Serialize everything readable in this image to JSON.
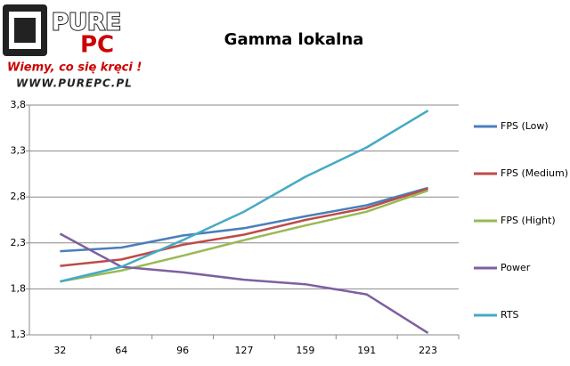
{
  "logo": {
    "top": "PURE",
    "bottom": "PC",
    "slogan": "Wiemy, co się kręci !",
    "url": "WWW.PUREPC.PL"
  },
  "chart_data": {
    "type": "line",
    "title": "Gamma lokalna",
    "categories": [
      "32",
      "64",
      "96",
      "127",
      "159",
      "191",
      "223"
    ],
    "series": [
      {
        "name": "FPS (Low)",
        "color": "#4a7ebb",
        "values": [
          2.21,
          2.25,
          2.38,
          2.46,
          2.59,
          2.71,
          2.9
        ]
      },
      {
        "name": "FPS (Medium)",
        "color": "#be4b48",
        "values": [
          2.05,
          2.12,
          2.28,
          2.39,
          2.55,
          2.68,
          2.89
        ]
      },
      {
        "name": "FPS (Hight)",
        "color": "#98b954",
        "values": [
          1.88,
          2.0,
          2.16,
          2.33,
          2.49,
          2.64,
          2.87
        ]
      },
      {
        "name": "Power",
        "color": "#7d60a0",
        "values": [
          2.4,
          2.04,
          1.98,
          1.9,
          1.85,
          1.74,
          1.32
        ]
      },
      {
        "name": "RTS",
        "color": "#46aac5",
        "values": [
          1.88,
          2.04,
          2.33,
          2.64,
          3.02,
          3.34,
          3.74
        ]
      }
    ],
    "ylim": [
      1.3,
      3.8
    ],
    "yticks": [
      {
        "value": 1.3,
        "label": "1,3"
      },
      {
        "value": 1.8,
        "label": "1,8"
      },
      {
        "value": 2.3,
        "label": "2,3"
      },
      {
        "value": 2.8,
        "label": "2,8"
      },
      {
        "value": 3.3,
        "label": "3,3"
      },
      {
        "value": 3.8,
        "label": "3,8"
      }
    ],
    "grid": true,
    "legend": "right"
  }
}
